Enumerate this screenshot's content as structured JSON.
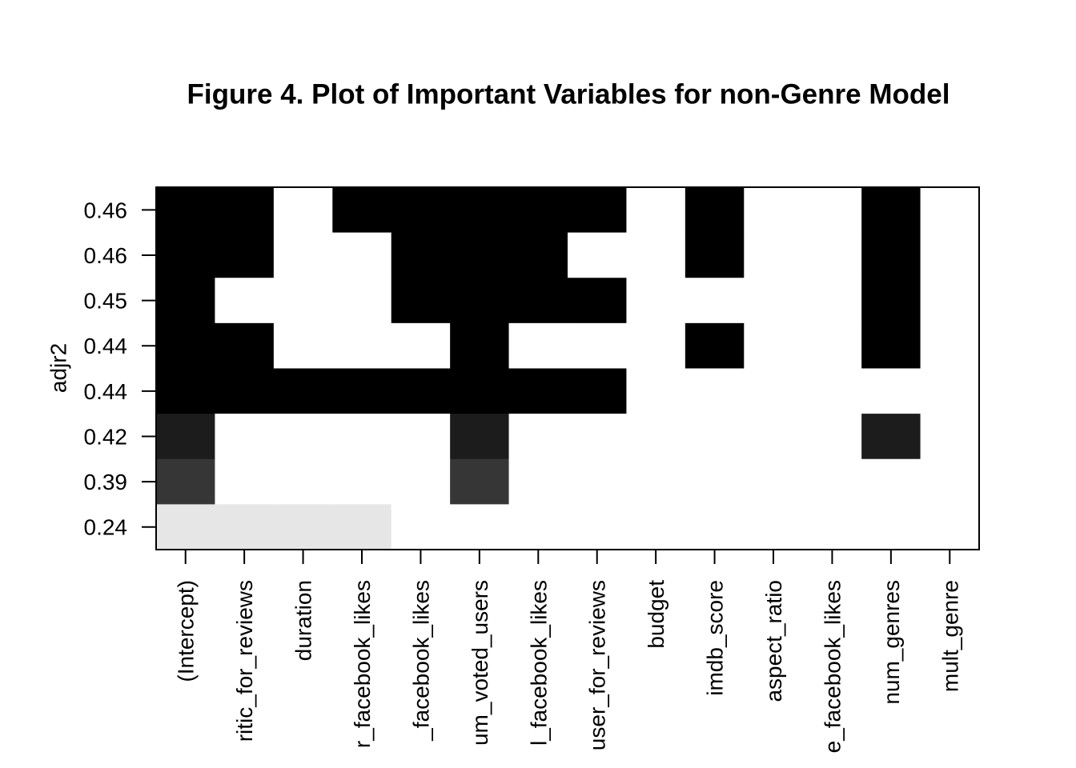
{
  "chart_data": {
    "type": "heatmap",
    "title": "Figure 4. Plot of Important Variables for non-Genre Model",
    "y_label": "adjr2",
    "columns": [
      "(Intercept)",
      "ritic_for_reviews",
      "duration",
      "r_facebook_likes",
      "_facebook_likes",
      "um_voted_users",
      "l_facebook_likes",
      "user_for_reviews",
      "budget",
      "imdb_score",
      "aspect_ratio",
      "e_facebook_likes",
      "num_genres",
      "mult_genre"
    ],
    "rows": [
      0.46,
      0.46,
      0.45,
      0.44,
      0.44,
      0.42,
      0.39,
      0.24
    ],
    "row_colors": [
      "#000000",
      "#000000",
      "#000000",
      "#000000",
      "#000000",
      "#1c1c1c",
      "#363636",
      "#e6e6e6"
    ],
    "matrix": [
      [
        1,
        1,
        0,
        1,
        1,
        1,
        1,
        1,
        0,
        1,
        0,
        0,
        1,
        0
      ],
      [
        1,
        1,
        0,
        0,
        1,
        1,
        1,
        0,
        0,
        1,
        0,
        0,
        1,
        0
      ],
      [
        1,
        0,
        0,
        0,
        1,
        1,
        1,
        1,
        0,
        0,
        0,
        0,
        1,
        0
      ],
      [
        1,
        1,
        0,
        0,
        0,
        1,
        0,
        0,
        0,
        1,
        0,
        0,
        1,
        0
      ],
      [
        1,
        1,
        1,
        1,
        1,
        1,
        1,
        1,
        0,
        0,
        0,
        0,
        0,
        0
      ],
      [
        1,
        0,
        0,
        0,
        0,
        1,
        0,
        0,
        0,
        0,
        0,
        0,
        1,
        0
      ],
      [
        1,
        0,
        0,
        0,
        0,
        1,
        0,
        0,
        0,
        0,
        0,
        0,
        0,
        0
      ],
      [
        1,
        1,
        1,
        1,
        0,
        0,
        0,
        0,
        0,
        0,
        0,
        0,
        0,
        0
      ]
    ]
  }
}
